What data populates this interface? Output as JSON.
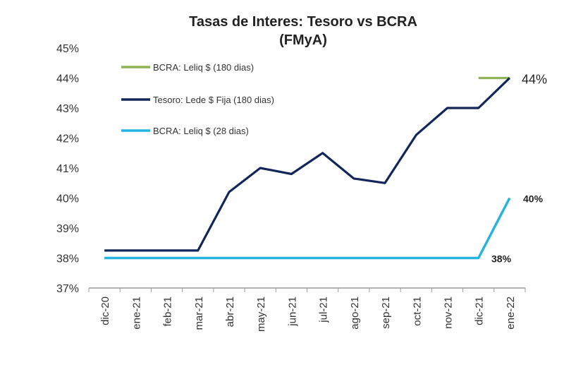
{
  "chart_data": {
    "type": "line",
    "title": "Tasas de Interes: Tesoro vs BCRA",
    "subtitle": "(FMyA)",
    "xlabel": "",
    "ylabel": "",
    "categories": [
      "dic-20",
      "ene-21",
      "feb-21",
      "mar-21",
      "abr-21",
      "may-21",
      "jun-21",
      "jul-21",
      "ago-21",
      "sep-21",
      "oct-21",
      "nov-21",
      "dic-21",
      "ene-22"
    ],
    "ylim": [
      37,
      45
    ],
    "yticks": [
      "37%",
      "38%",
      "39%",
      "40%",
      "41%",
      "42%",
      "43%",
      "44%",
      "45%"
    ],
    "grid": false,
    "legend_position": "top-left",
    "series": [
      {
        "name": "BCRA: Leliq $ (180 dias)",
        "color": "#8fb356",
        "values": [
          null,
          null,
          null,
          null,
          null,
          null,
          null,
          null,
          null,
          null,
          null,
          null,
          44,
          44
        ]
      },
      {
        "name": "Tesoro: Lede $ Fija (180 dias)",
        "color": "#12265a",
        "values": [
          38.25,
          38.25,
          38.25,
          38.25,
          40.2,
          41.0,
          40.8,
          41.5,
          40.65,
          40.5,
          42.1,
          43.0,
          43.0,
          44.0
        ]
      },
      {
        "name": "BCRA: Leliq $ (28 dias)",
        "color": "#25b4e0",
        "values": [
          38,
          38,
          38,
          38,
          38,
          38,
          38,
          38,
          38,
          38,
          38,
          38,
          38,
          40
        ]
      }
    ],
    "annotations": [
      {
        "text": "44%",
        "x": "ene-22",
        "y": 44,
        "style": "large"
      },
      {
        "text": "40%",
        "x": "ene-22",
        "y": 40,
        "style": "bold"
      },
      {
        "text": "38%",
        "x": "dic-21",
        "y": 38,
        "style": "bold"
      }
    ]
  }
}
